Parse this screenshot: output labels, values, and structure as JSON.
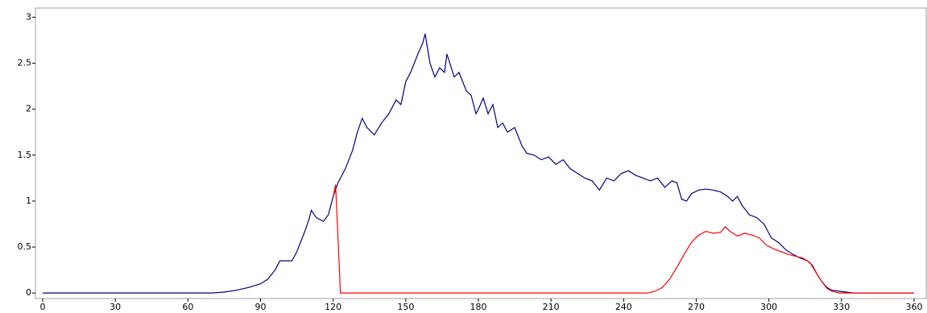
{
  "chart_data": {
    "type": "line",
    "xlim": [
      -3,
      365
    ],
    "ylim": [
      -0.06,
      3.1
    ],
    "xticks": [
      0,
      30,
      60,
      90,
      120,
      150,
      180,
      210,
      240,
      270,
      300,
      330,
      360
    ],
    "yticks": [
      0,
      0.5,
      1,
      1.5,
      2,
      2.5,
      3
    ],
    "grid": false,
    "series": [
      {
        "color": "#000080",
        "x": [
          0,
          70,
          75,
          80,
          85,
          90,
          93,
          96,
          98,
          100,
          103,
          105,
          108,
          110,
          111,
          113,
          116,
          118,
          120,
          122,
          125,
          128,
          130,
          132,
          134,
          137,
          140,
          143,
          146,
          148,
          150,
          152,
          155,
          157,
          158,
          160,
          162,
          164,
          166,
          167,
          170,
          172,
          175,
          177,
          179,
          180,
          182,
          184,
          186,
          188,
          190,
          192,
          195,
          198,
          200,
          203,
          206,
          209,
          212,
          215,
          218,
          221,
          224,
          227,
          230,
          233,
          236,
          239,
          242,
          245,
          248,
          251,
          254,
          257,
          260,
          262,
          264,
          266,
          268,
          271,
          274,
          277,
          280,
          283,
          285,
          287,
          289,
          292,
          295,
          298,
          301,
          304,
          307,
          310,
          313,
          316,
          318,
          320,
          322,
          324,
          326,
          329,
          332,
          335,
          360
        ],
        "values": [
          0,
          0,
          0.01,
          0.03,
          0.06,
          0.1,
          0.15,
          0.25,
          0.35,
          0.35,
          0.35,
          0.45,
          0.65,
          0.8,
          0.9,
          0.82,
          0.78,
          0.85,
          1.05,
          1.2,
          1.35,
          1.55,
          1.75,
          1.9,
          1.8,
          1.72,
          1.85,
          1.95,
          2.1,
          2.05,
          2.3,
          2.4,
          2.6,
          2.72,
          2.82,
          2.5,
          2.35,
          2.45,
          2.4,
          2.6,
          2.35,
          2.4,
          2.2,
          2.15,
          1.95,
          2.0,
          2.12,
          1.95,
          2.05,
          1.8,
          1.85,
          1.75,
          1.8,
          1.6,
          1.52,
          1.5,
          1.45,
          1.48,
          1.4,
          1.45,
          1.35,
          1.3,
          1.25,
          1.22,
          1.12,
          1.25,
          1.22,
          1.3,
          1.33,
          1.28,
          1.25,
          1.22,
          1.25,
          1.15,
          1.22,
          1.2,
          1.02,
          1.0,
          1.08,
          1.12,
          1.13,
          1.12,
          1.1,
          1.05,
          1.0,
          1.05,
          0.95,
          0.85,
          0.82,
          0.75,
          0.6,
          0.55,
          0.47,
          0.42,
          0.38,
          0.35,
          0.3,
          0.2,
          0.12,
          0.06,
          0.03,
          0.02,
          0.01,
          0,
          0
        ]
      },
      {
        "color": "#ff0000",
        "x": [
          120,
          121,
          122,
          123,
          250,
          253,
          256,
          259,
          262,
          265,
          268,
          271,
          274,
          277,
          280,
          282,
          284,
          287,
          290,
          293,
          296,
          299,
          302,
          305,
          308,
          311,
          314,
          317,
          320,
          322,
          324,
          326,
          329,
          360
        ],
        "values": [
          1.05,
          1.18,
          0.6,
          0,
          0,
          0.02,
          0.06,
          0.15,
          0.28,
          0.42,
          0.55,
          0.63,
          0.67,
          0.65,
          0.66,
          0.72,
          0.67,
          0.62,
          0.65,
          0.63,
          0.6,
          0.52,
          0.48,
          0.45,
          0.42,
          0.4,
          0.38,
          0.33,
          0.2,
          0.12,
          0.05,
          0.02,
          0,
          0
        ]
      }
    ]
  }
}
